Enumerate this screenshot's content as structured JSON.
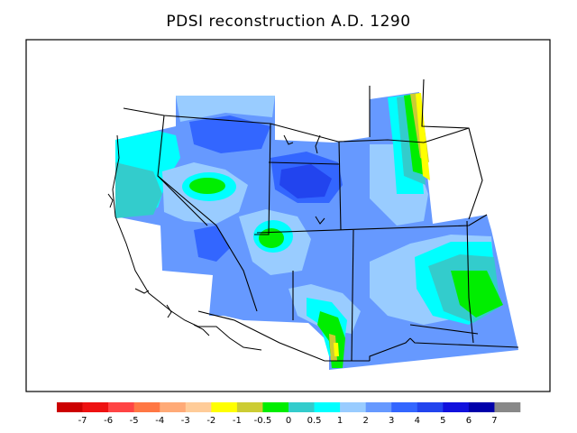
{
  "title": "PDSI reconstruction A.D. 1290",
  "legend": {
    "colors": [
      "#cc0000",
      "#ee1111",
      "#ff4444",
      "#ff7744",
      "#ffaa77",
      "#ffcc99",
      "#ffff00",
      "#cccc33",
      "#00ee00",
      "#33cccc",
      "#00ffff",
      "#99ccff",
      "#6699ff",
      "#3366ff",
      "#2244ee",
      "#1111dd",
      "#0000aa",
      "#888888"
    ],
    "labels": [
      "-7",
      "-6",
      "-5",
      "-4",
      "-3",
      "-2",
      "-1",
      "-0.5",
      "0",
      "0.5",
      "1",
      "2",
      "3",
      "4",
      "5",
      "6",
      "7"
    ]
  },
  "palette": {
    "cyan": "#00ffff",
    "teal": "#33cccc",
    "light_blue": "#99ccff",
    "med_blue": "#6699ff",
    "blue": "#3366ff",
    "deep_blue": "#2244ee",
    "green": "#00ee00",
    "yellow": "#ffff00",
    "olive": "#cccc33"
  }
}
